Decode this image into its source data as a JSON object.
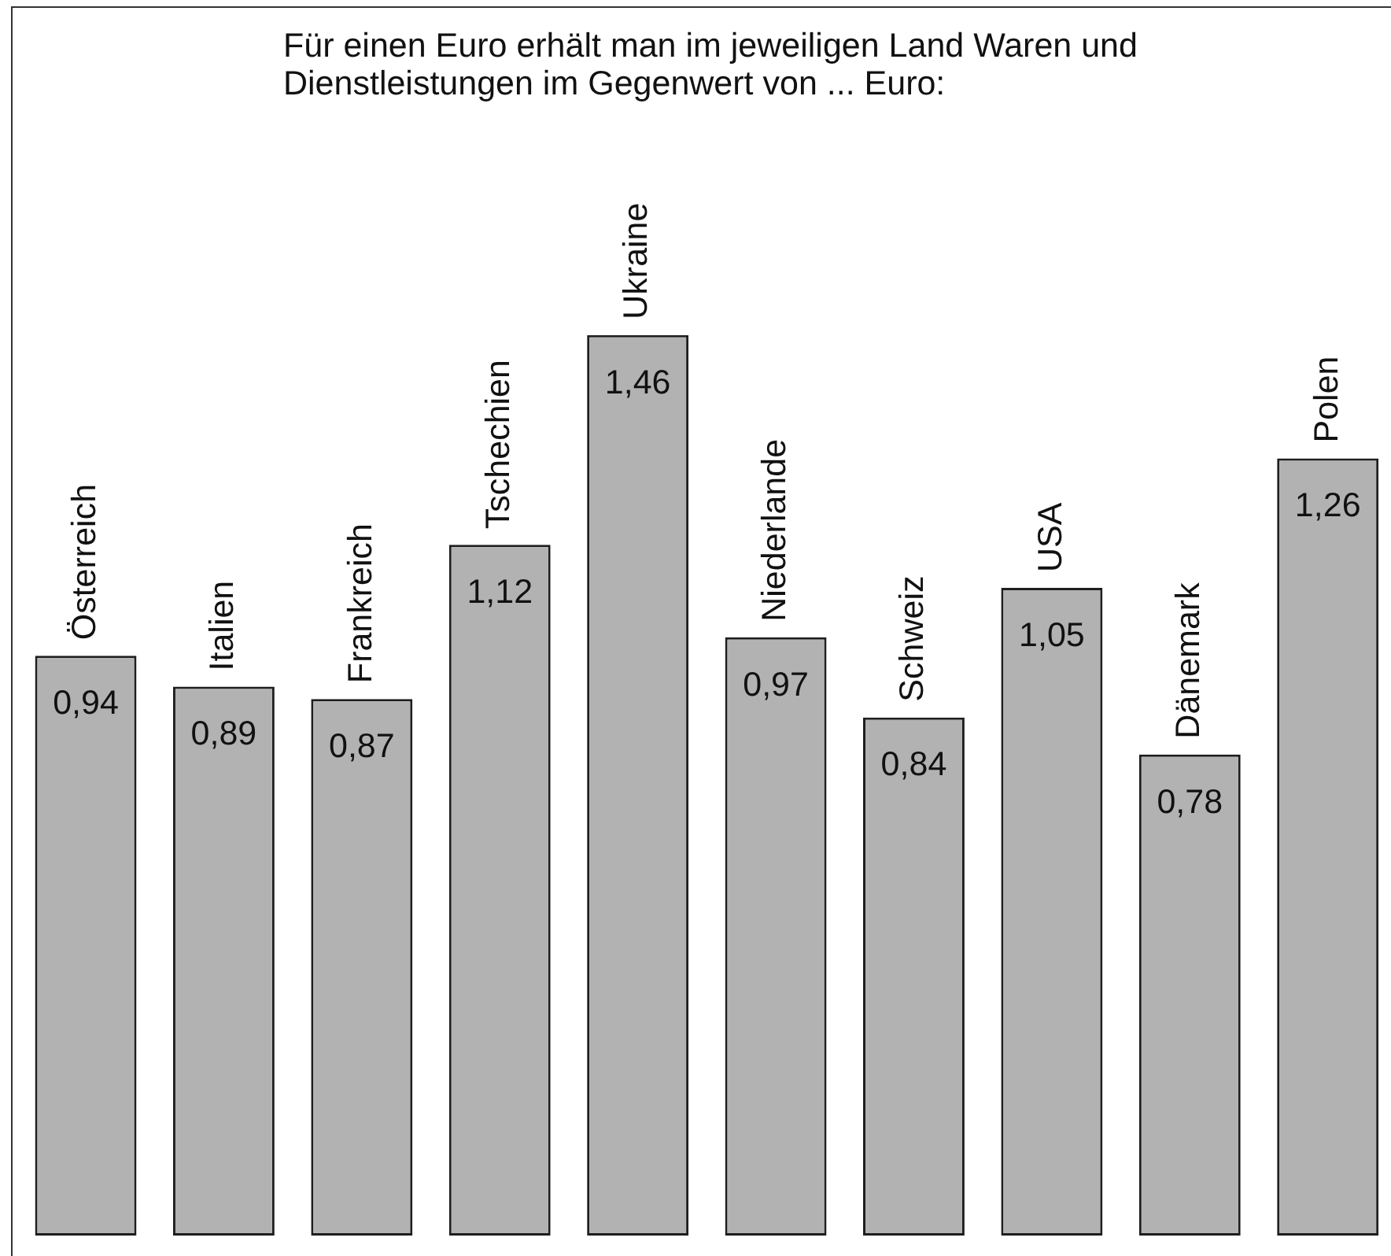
{
  "chart_data": {
    "type": "bar",
    "title": "Für einen Euro erhält man im jeweiligen Land Waren und Dienstleistungen im Gegenwert von ... Euro:",
    "categories": [
      "Österreich",
      "Italien",
      "Frankreich",
      "Tschechien",
      "Ukraine",
      "Niederlande",
      "Schweiz",
      "USA",
      "Dänemark",
      "Polen"
    ],
    "values": [
      0.94,
      0.89,
      0.87,
      1.12,
      1.46,
      0.97,
      0.84,
      1.05,
      0.78,
      1.26
    ],
    "value_labels": [
      "0,94",
      "0,89",
      "0,87",
      "1,12",
      "1,46",
      "0,97",
      "0,84",
      "1,05",
      "0,78",
      "1,26"
    ],
    "color": "#b2b2b2"
  }
}
